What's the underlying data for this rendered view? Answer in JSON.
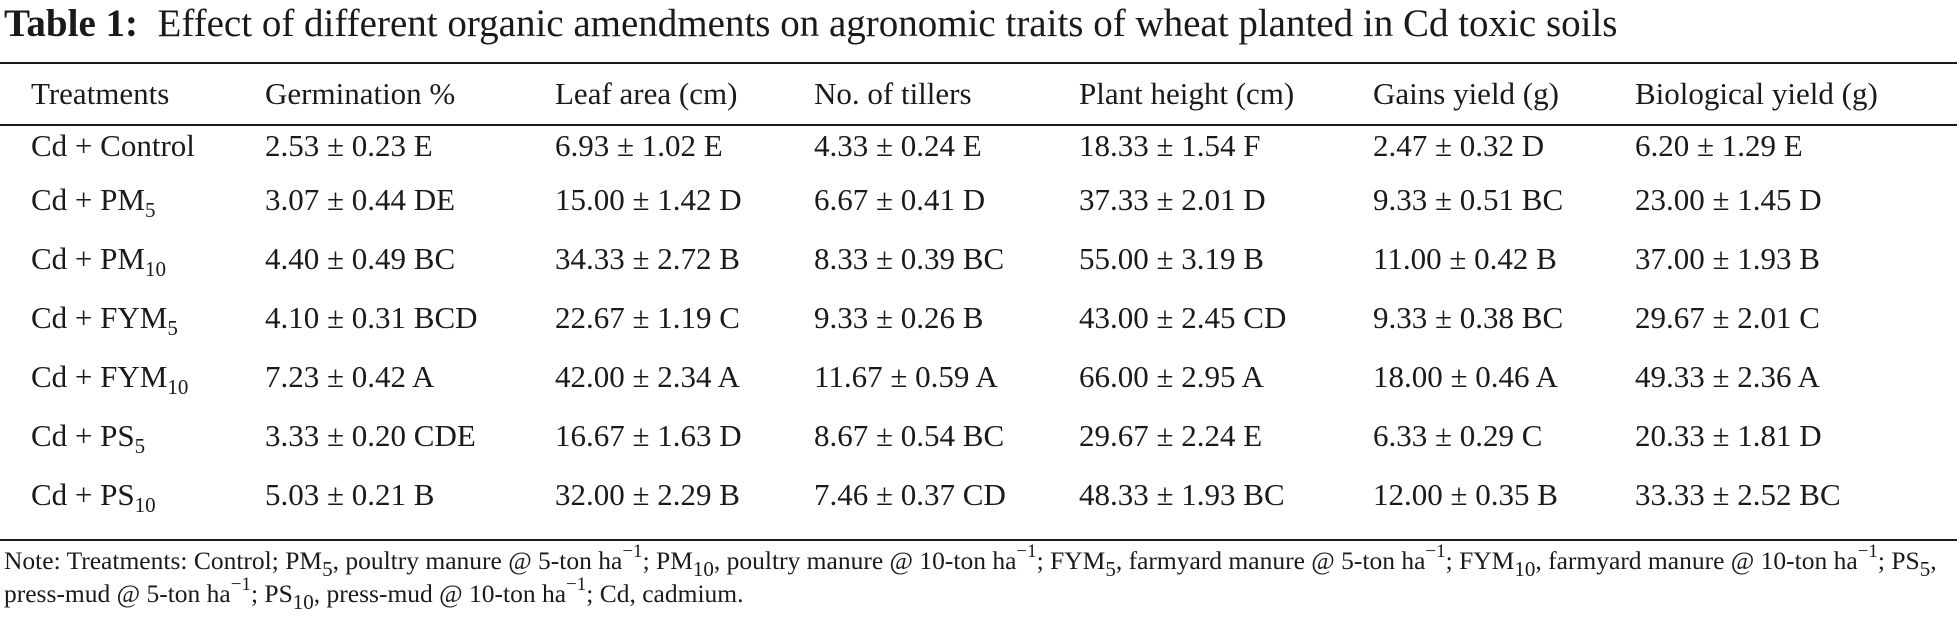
{
  "caption": {
    "label": "Table 1:",
    "text": "Effect of different organic amendments on agronomic traits of wheat planted in Cd toxic soils"
  },
  "table": {
    "headers": [
      "Treatments",
      "Germination %",
      "Leaf area (cm)",
      "No. of tillers",
      "Plant height (cm)",
      "Gains yield (g)",
      "Biological yield (g)"
    ],
    "rows": [
      {
        "treatment": {
          "base": "Cd + Control",
          "sub": ""
        },
        "cells": [
          "2.53 ± 0.23 E",
          "6.93 ± 1.02 E",
          "4.33 ± 0.24 E",
          "18.33 ± 1.54 F",
          "2.47 ± 0.32 D",
          "6.20 ± 1.29 E"
        ]
      },
      {
        "treatment": {
          "base": "Cd + PM",
          "sub": "5"
        },
        "cells": [
          "3.07 ± 0.44 DE",
          "15.00 ± 1.42 D",
          "6.67 ± 0.41 D",
          "37.33 ± 2.01 D",
          "9.33 ± 0.51 BC",
          "23.00 ± 1.45 D"
        ]
      },
      {
        "treatment": {
          "base": "Cd + PM",
          "sub": "10"
        },
        "cells": [
          "4.40 ± 0.49 BC",
          "34.33 ± 2.72 B",
          "8.33 ± 0.39 BC",
          "55.00 ± 3.19 B",
          "11.00 ± 0.42 B",
          "37.00 ± 1.93 B"
        ]
      },
      {
        "treatment": {
          "base": "Cd + FYM",
          "sub": "5"
        },
        "cells": [
          "4.10 ± 0.31 BCD",
          "22.67 ± 1.19 C",
          "9.33 ± 0.26 B",
          "43.00 ± 2.45 CD",
          "9.33 ± 0.38 BC",
          "29.67 ± 2.01 C"
        ]
      },
      {
        "treatment": {
          "base": "Cd + FYM",
          "sub": "10"
        },
        "cells": [
          "7.23 ± 0.42 A",
          "42.00 ± 2.34 A",
          "11.67 ± 0.59 A",
          "66.00 ± 2.95 A",
          "18.00 ± 0.46 A",
          "49.33 ± 2.36 A"
        ]
      },
      {
        "treatment": {
          "base": "Cd + PS",
          "sub": "5"
        },
        "cells": [
          "3.33 ± 0.20 CDE",
          "16.67 ± 1.63 D",
          "8.67 ± 0.54 BC",
          "29.67 ± 2.24 E",
          "6.33 ± 0.29 C",
          "20.33 ± 1.81 D"
        ]
      },
      {
        "treatment": {
          "base": "Cd + PS",
          "sub": "10"
        },
        "cells": [
          "5.03 ± 0.21 B",
          "32.00 ± 2.29 B",
          "7.46 ± 0.37 CD",
          "48.33 ± 1.93 BC",
          "12.00 ± 0.35 B",
          "33.33 ± 2.52 BC"
        ]
      }
    ]
  },
  "note": {
    "p01": "Note: Treatments: Control; PM",
    "s01": "5",
    "p02": ", poultry manure @ 5-ton ha",
    "e01": "−1",
    "p03": "; PM",
    "s02": "10",
    "p04": ", poultry manure @ 10-ton ha",
    "e02": "−1",
    "p05": "; FYM",
    "s03": "5",
    "p06": ", farmyard manure @ 5-ton ha",
    "e03": "−1",
    "p07": "; FYM",
    "s04": "10",
    "p08": ", farmyard manure @ 10-ton ha",
    "e04": "−1",
    "p09": "; PS",
    "s05": "5",
    "p10": ", press-mud @ 5-ton ha",
    "e05": "−1",
    "p11": "; PS",
    "s06": "10",
    "p12": ", press-mud @ 10-ton ha",
    "e06": "−1",
    "p13": "; Cd, cadmium."
  }
}
